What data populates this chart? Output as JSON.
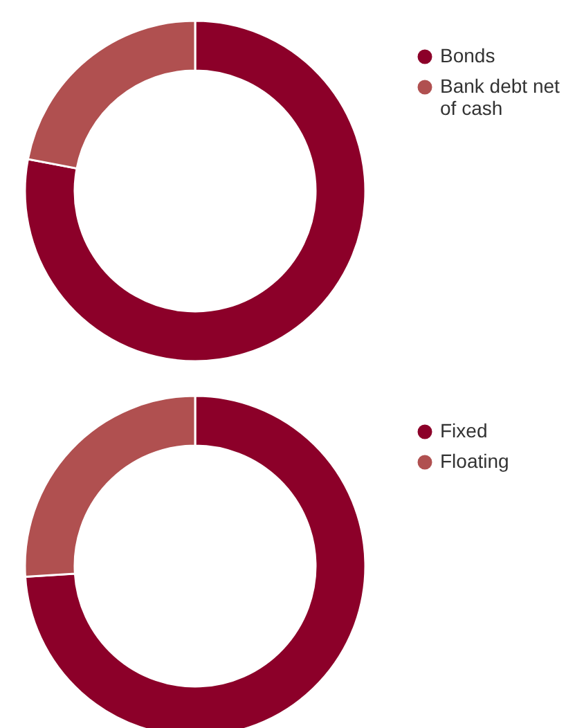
{
  "chart_data": [
    {
      "type": "donut",
      "categories": [
        "Bonds",
        "Bank debt net of cash"
      ],
      "values": [
        78,
        22
      ],
      "colors": [
        "#8c0029",
        "#b05050"
      ],
      "legend": "top right"
    },
    {
      "type": "donut",
      "categories": [
        "Fixed",
        "Floating"
      ],
      "values": [
        74,
        26
      ],
      "colors": [
        "#8c0029",
        "#b05050"
      ],
      "legend": "top right"
    }
  ]
}
